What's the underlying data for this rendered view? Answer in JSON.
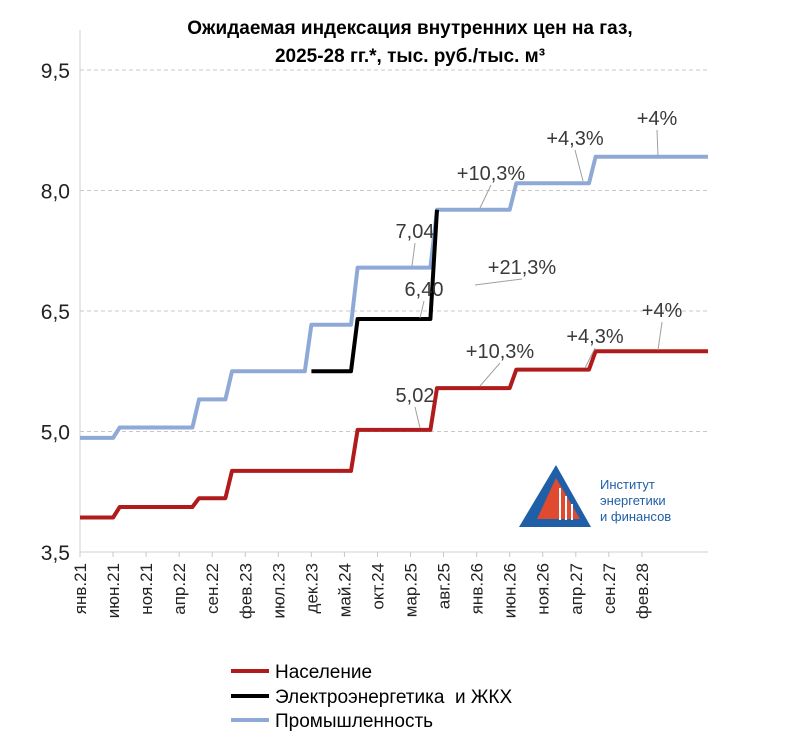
{
  "chart_data": {
    "type": "line",
    "title_lines": [
      "Ожидаемая индексация внутренних цен на газ,",
      "2025-28 гг.*, тыс. руб./тыс. м³"
    ],
    "ylim": [
      3.5,
      9.5
    ],
    "yticks": [
      "3,5",
      "5,0",
      "6,5",
      "8,0",
      "9,5"
    ],
    "ytick_values": [
      3.5,
      5.0,
      6.5,
      8.0,
      9.5
    ],
    "grid": "horizontal dashed",
    "x_tick_labels": [
      "янв.21",
      "июн.21",
      "ноя.21",
      "апр.22",
      "сен.22",
      "фев.23",
      "июл.23",
      "дек.23",
      "май.24",
      "окт.24",
      "мар.25",
      "авг.25",
      "янв.26",
      "июн.26",
      "ноя.26",
      "апр.27",
      "сен.27",
      "фев.28"
    ],
    "x_start": "янв.21",
    "x_end": "дек.28",
    "series": [
      {
        "name": "Население",
        "color": "#b01c1c",
        "points": [
          [
            "янв.21",
            3.93
          ],
          [
            "июн.21",
            3.93
          ],
          [
            "июл.21",
            4.06
          ],
          [
            "июн.22",
            4.06
          ],
          [
            "июл.22",
            4.17
          ],
          [
            "ноя.22",
            4.17
          ],
          [
            "дек.22",
            4.51
          ],
          [
            "июн.24",
            4.51
          ],
          [
            "июл.24",
            5.02
          ],
          [
            "июн.25",
            5.02
          ],
          [
            "июл.25",
            5.54
          ],
          [
            "июн.26",
            5.54
          ],
          [
            "июл.26",
            5.77
          ],
          [
            "июн.27",
            5.77
          ],
          [
            "июл.27",
            6.0
          ],
          [
            "дек.28",
            6.0
          ]
        ]
      },
      {
        "name": "Электроэнергетика  и ЖКХ",
        "color": "#000000",
        "points": [
          [
            "дек.23",
            5.75
          ],
          [
            "июн.24",
            5.75
          ],
          [
            "июл.24",
            6.4
          ],
          [
            "июн.25",
            6.4
          ],
          [
            "июл.25",
            7.76
          ]
        ]
      },
      {
        "name": "Промышленность",
        "color": "#8fa9d6",
        "points": [
          [
            "янв.21",
            4.92
          ],
          [
            "июн.21",
            4.92
          ],
          [
            "июл.21",
            5.05
          ],
          [
            "июн.22",
            5.05
          ],
          [
            "июл.22",
            5.4
          ],
          [
            "ноя.22",
            5.4
          ],
          [
            "дек.22",
            5.75
          ],
          [
            "ноя.23",
            5.75
          ],
          [
            "дек.23",
            6.33
          ],
          [
            "июн.24",
            6.33
          ],
          [
            "июл.24",
            7.04
          ],
          [
            "июн.25",
            7.04
          ],
          [
            "июл.25",
            7.76
          ],
          [
            "июн.26",
            7.76
          ],
          [
            "июл.26",
            8.09
          ],
          [
            "июн.27",
            8.09
          ],
          [
            "июл.27",
            8.42
          ],
          [
            "дек.28",
            8.42
          ]
        ]
      }
    ],
    "annotations": [
      {
        "text": "7,04",
        "series": "Промышленность"
      },
      {
        "text": "6,40",
        "series": "Электроэнергетика  и ЖКХ"
      },
      {
        "text": "5,02",
        "series": "Население"
      },
      {
        "text": "+10,3%",
        "series": "Промышленность"
      },
      {
        "text": "+21,3%",
        "series": "Электроэнергетика  и ЖКХ"
      },
      {
        "text": "+10,3%",
        "series": "Население"
      },
      {
        "text": "+4,3%",
        "series": "Промышленность"
      },
      {
        "text": "+4,3%",
        "series": "Население"
      },
      {
        "text": "+4%",
        "series": "Промышленность"
      },
      {
        "text": "+4%",
        "series": "Население"
      }
    ],
    "legend": {
      "placement": "bottom",
      "items": [
        {
          "label": "Население",
          "color": "#b01c1c"
        },
        {
          "label": "Электроэнергетика  и ЖКХ",
          "color": "#000000"
        },
        {
          "label": "Промышленность",
          "color": "#8fa9d6"
        }
      ]
    }
  },
  "logo": {
    "lines": [
      "Институт",
      "энергетики",
      "и финансов"
    ]
  }
}
